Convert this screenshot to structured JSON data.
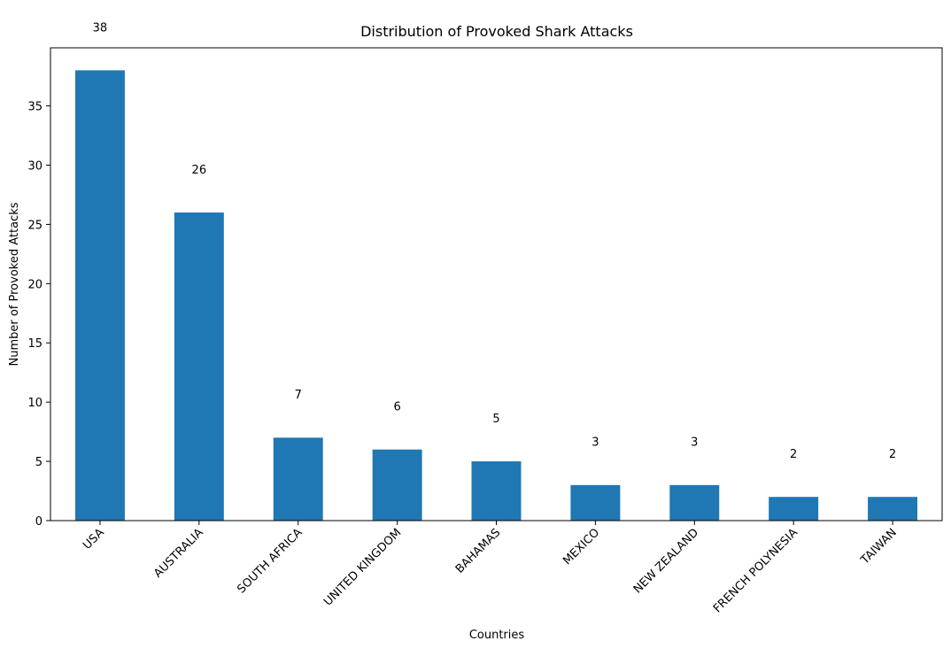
{
  "chart_data": {
    "type": "bar",
    "title": "Distribution of Provoked Shark Attacks",
    "xlabel": "Countries",
    "ylabel": "Number of Provoked Attacks",
    "categories": [
      "USA",
      "AUSTRALIA",
      "SOUTH AFRICA",
      "UNITED KINGDOM",
      "BAHAMAS",
      "MEXICO",
      "NEW ZEALAND",
      "FRENCH POLYNESIA",
      "TAIWAN"
    ],
    "values": [
      38,
      26,
      7,
      6,
      5,
      3,
      3,
      2,
      2
    ],
    "data_labels": [
      "38",
      "26",
      "7",
      "6",
      "5",
      "3",
      "3",
      "2",
      "2"
    ],
    "yticks": [
      0,
      5,
      10,
      15,
      20,
      25,
      30,
      35
    ],
    "ylim": [
      0,
      39.9
    ],
    "bar_color": "#1f77b4",
    "grid": false,
    "legend": "none"
  }
}
